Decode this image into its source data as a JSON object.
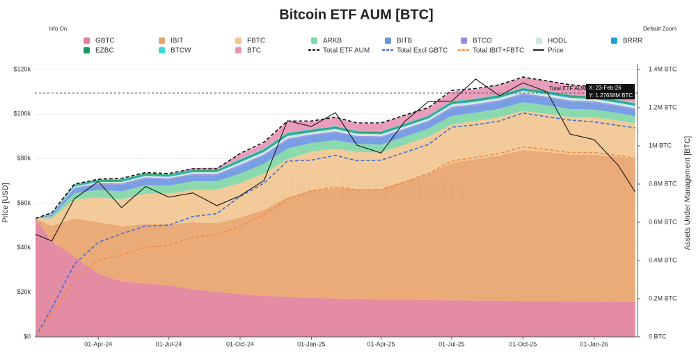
{
  "chart_data": {
    "type": "stacked_area",
    "title": "Bitcoin ETF AUM [BTC]",
    "controls": {
      "info": "Info On",
      "zoom": "Default Zoom"
    },
    "watermark": "checkonchain",
    "ylabel": "Price [USD]",
    "y2label": "Assets Under Management [BTC]",
    "xlim": [
      "2024-01-10",
      "2026-02-26"
    ],
    "xticks": [
      {
        "value": "2024-04-01",
        "label": "01-Apr-24"
      },
      {
        "value": "2024-07-01",
        "label": "01-Jul-24"
      },
      {
        "value": "2024-10-01",
        "label": "01-Oct-24"
      },
      {
        "value": "2025-01-01",
        "label": "01-Jan-25"
      },
      {
        "value": "2025-04-01",
        "label": "01-Apr-25"
      },
      {
        "value": "2025-07-01",
        "label": "01-Jul-25"
      },
      {
        "value": "2025-10-01",
        "label": "01-Oct-25"
      },
      {
        "value": "2026-01-01",
        "label": "01-Jan-26"
      }
    ],
    "ylim": [
      0,
      120000
    ],
    "yticks": [
      {
        "value": 0,
        "label": "$0"
      },
      {
        "value": 20000,
        "label": "$20k"
      },
      {
        "value": 40000,
        "label": "$40k"
      },
      {
        "value": 60000,
        "label": "$60k"
      },
      {
        "value": 80000,
        "label": "$80k"
      },
      {
        "value": 100000,
        "label": "$100k"
      },
      {
        "value": 120000,
        "label": "$120k"
      }
    ],
    "y2lim": [
      0,
      1400000
    ],
    "y2ticks": [
      {
        "value": 0,
        "label": "0 BTC"
      },
      {
        "value": 200000,
        "label": "0.2M BTC"
      },
      {
        "value": 400000,
        "label": "0.4M BTC"
      },
      {
        "value": 600000,
        "label": "0.6M BTC"
      },
      {
        "value": 800000,
        "label": "0.8M BTC"
      },
      {
        "value": 1000000,
        "label": "1M BTC"
      },
      {
        "value": 1200000,
        "label": "1.2M BTC"
      },
      {
        "value": 1400000,
        "label": "1.4M BTC"
      }
    ],
    "grid": true,
    "tooltip": {
      "name": "Total ETF AUM",
      "x": "X: 23-Feb-26",
      "y": "Y: 1.27658M BTC",
      "value": 1276580
    },
    "x": [
      "2024-01-11",
      "2024-02-01",
      "2024-03-01",
      "2024-04-01",
      "2024-05-01",
      "2024-06-01",
      "2024-07-01",
      "2024-08-01",
      "2024-09-01",
      "2024-10-01",
      "2024-11-01",
      "2024-12-01",
      "2025-01-01",
      "2025-02-01",
      "2025-03-01",
      "2025-04-01",
      "2025-05-01",
      "2025-06-01",
      "2025-07-01",
      "2025-08-01",
      "2025-09-01",
      "2025-10-01",
      "2025-11-01",
      "2025-12-01",
      "2026-01-01",
      "2026-02-01",
      "2026-02-23"
    ],
    "series": [
      {
        "name": "GBTC",
        "color": "#e07f9a",
        "style": "area",
        "axis": "y2",
        "values": [
          620000,
          500000,
          420000,
          330000,
          290000,
          280000,
          270000,
          250000,
          235000,
          225000,
          215000,
          210000,
          205000,
          200000,
          198000,
          195000,
          195000,
          193000,
          192000,
          190000,
          190000,
          188000,
          188000,
          185000,
          185000,
          183000,
          182000
        ]
      },
      {
        "name": "IBIT",
        "color": "#e8a26a",
        "style": "area",
        "axis": "y2",
        "values": [
          0,
          80000,
          200000,
          270000,
          290000,
          310000,
          320000,
          350000,
          360000,
          400000,
          450000,
          520000,
          560000,
          580000,
          575000,
          580000,
          620000,
          660000,
          720000,
          740000,
          760000,
          790000,
          780000,
          770000,
          770000,
          760000,
          750000
        ]
      },
      {
        "name": "FBTC",
        "color": "#f2c48e",
        "style": "area",
        "axis": "y2",
        "values": [
          0,
          40000,
          100000,
          130000,
          140000,
          160000,
          160000,
          170000,
          175000,
          180000,
          190000,
          200000,
          205000,
          205000,
          195000,
          190000,
          190000,
          195000,
          200000,
          200000,
          200000,
          205000,
          200000,
          195000,
          195000,
          190000,
          185000
        ]
      },
      {
        "name": "ARKB",
        "color": "#7ed6a5",
        "style": "area",
        "axis": "y2",
        "values": [
          0,
          12000,
          32000,
          40000,
          42000,
          44000,
          42000,
          44000,
          44000,
          50000,
          52000,
          55000,
          45000,
          45000,
          42000,
          42000,
          42000,
          42000,
          45000,
          44000,
          44000,
          45000,
          44000,
          43000,
          40000,
          39000,
          39000
        ]
      },
      {
        "name": "BITB",
        "color": "#6a94e0",
        "style": "area",
        "axis": "y2",
        "values": [
          0,
          9000,
          24000,
          28000,
          34000,
          34000,
          32000,
          33000,
          33000,
          40000,
          42000,
          45000,
          38000,
          39000,
          36000,
          37000,
          37000,
          36000,
          40000,
          38000,
          38000,
          40000,
          39000,
          38000,
          36000,
          35000,
          35000
        ]
      },
      {
        "name": "BTCO",
        "color": "#9a8ce0",
        "style": "area",
        "axis": "y2",
        "values": [
          0,
          2000,
          5000,
          6000,
          7000,
          7000,
          6000,
          6000,
          6000,
          7000,
          7000,
          8000,
          7000,
          7000,
          6000,
          6000,
          6000,
          6000,
          7000,
          7000,
          7000,
          7000,
          7000,
          7000,
          7000,
          6000,
          6000
        ]
      },
      {
        "name": "HODL",
        "color": "#c6ebd8",
        "style": "area",
        "axis": "y2",
        "values": [
          0,
          2000,
          6000,
          7000,
          8000,
          8000,
          8000,
          9000,
          9000,
          11000,
          12000,
          13000,
          11000,
          12000,
          11000,
          11000,
          11000,
          11000,
          13000,
          12000,
          12000,
          13000,
          13000,
          13000,
          12000,
          12000,
          12000
        ]
      },
      {
        "name": "BRRR",
        "color": "#1f9fd1",
        "style": "area",
        "axis": "y2",
        "values": [
          0,
          1000,
          3000,
          4000,
          5000,
          5000,
          5000,
          5000,
          5000,
          6000,
          6000,
          6000,
          5000,
          5000,
          5000,
          5000,
          5000,
          5000,
          6000,
          6000,
          6000,
          6000,
          6000,
          6000,
          5000,
          5000,
          5000
        ]
      },
      {
        "name": "EZBC",
        "color": "#1a9a62",
        "style": "area",
        "axis": "y2",
        "values": [
          0,
          2000,
          5000,
          6000,
          7000,
          7000,
          6000,
          6000,
          6000,
          8000,
          8000,
          9000,
          8000,
          8000,
          8000,
          8000,
          8000,
          8000,
          8000,
          8000,
          8000,
          8000,
          8000,
          8000,
          8000,
          8000,
          8000
        ]
      },
      {
        "name": "BTCW",
        "color": "#3fd7d9",
        "style": "area",
        "axis": "y2",
        "values": [
          0,
          1000,
          3000,
          3000,
          3000,
          3000,
          3000,
          3000,
          3000,
          4000,
          4000,
          4000,
          3000,
          3000,
          3000,
          3000,
          3000,
          3000,
          3000,
          3000,
          3000,
          3000,
          3000,
          3000,
          3000,
          3000,
          3000
        ]
      },
      {
        "name": "BTC",
        "color": "#e891b4",
        "style": "area",
        "axis": "y2",
        "values": [
          0,
          0,
          0,
          0,
          0,
          0,
          0,
          8000,
          10000,
          25000,
          30000,
          55000,
          40000,
          43000,
          38000,
          40000,
          41000,
          39000,
          50000,
          48000,
          50000,
          52000,
          50000,
          50000,
          46000,
          46000,
          48000
        ]
      },
      {
        "name": "Total ETF AUM",
        "color": "#111111",
        "style": "dashed",
        "axis": "y2",
        "values": [
          620000,
          650000,
          800000,
          825000,
          830000,
          860000,
          855000,
          880000,
          880000,
          960000,
          1020000,
          1130000,
          1130000,
          1150000,
          1120000,
          1120000,
          1160000,
          1200000,
          1290000,
          1300000,
          1320000,
          1360000,
          1340000,
          1320000,
          1310000,
          1290000,
          1276580
        ]
      },
      {
        "name": "Total Excl GBTC",
        "color": "#3b6fd6",
        "style": "dashed",
        "axis": "y2",
        "values": [
          0,
          150000,
          380000,
          495000,
          540000,
          580000,
          585000,
          630000,
          645000,
          735000,
          805000,
          920000,
          925000,
          950000,
          922000,
          925000,
          965000,
          1007000,
          1098000,
          1110000,
          1130000,
          1172000,
          1152000,
          1135000,
          1125000,
          1107000,
          1094580
        ]
      },
      {
        "name": "Total IBIT+FBTC",
        "color": "#f08a3c",
        "style": "dashed",
        "axis": "y2",
        "values": [
          0,
          120000,
          300000,
          400000,
          430000,
          470000,
          480000,
          520000,
          535000,
          580000,
          640000,
          720000,
          765000,
          785000,
          770000,
          770000,
          810000,
          855000,
          920000,
          940000,
          960000,
          995000,
          980000,
          965000,
          965000,
          950000,
          935000
        ]
      },
      {
        "name": "Price",
        "color": "#222222",
        "style": "solid",
        "axis": "y",
        "values": [
          46000,
          43000,
          62000,
          69700,
          58000,
          67500,
          62700,
          64600,
          58900,
          63300,
          70200,
          97000,
          94400,
          100600,
          86000,
          82500,
          96500,
          105600,
          105700,
          115700,
          108200,
          114000,
          110000,
          91000,
          88500,
          77000,
          65000
        ]
      }
    ]
  }
}
